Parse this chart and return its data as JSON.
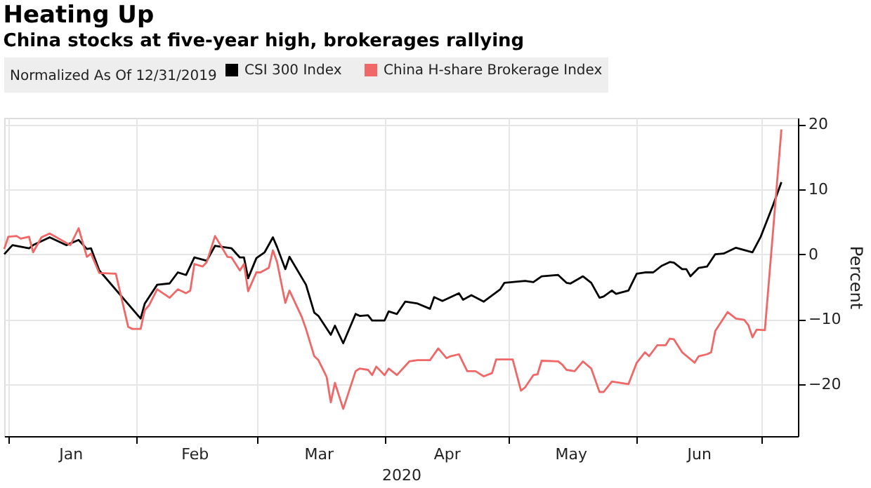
{
  "chart_data": {
    "type": "line",
    "title": "Heating Up",
    "subtitle": "China stocks at five-year high, brokerages rallying",
    "legend_title": "Normalized As Of 12/31/2019",
    "xlabel": "2020",
    "ylabel": "Percent",
    "legend": "top left",
    "grid": true,
    "marker": "none",
    "line_style": "solid",
    "xlim": [
      "2019-12-31",
      "2020-07-10"
    ],
    "xticks": [
      {
        "value": "2020-01-01",
        "label": null
      },
      {
        "value": "2020-01-16",
        "label": "Jan"
      },
      {
        "value": "2020-02-01",
        "label": null
      },
      {
        "value": "2020-02-15",
        "label": "Feb"
      },
      {
        "value": "2020-03-01",
        "label": null
      },
      {
        "value": "2020-03-16",
        "label": "Mar"
      },
      {
        "value": "2020-04-01",
        "label": null
      },
      {
        "value": "2020-04-16",
        "label": "Apr"
      },
      {
        "value": "2020-05-01",
        "label": null
      },
      {
        "value": "2020-05-16",
        "label": "May"
      },
      {
        "value": "2020-06-01",
        "label": null
      },
      {
        "value": "2020-06-16",
        "label": "Jun"
      },
      {
        "value": "2020-07-01",
        "label": null
      }
    ],
    "ylim": [
      -28,
      21
    ],
    "yticks": [
      -20,
      -10,
      0,
      10,
      20
    ],
    "series": [
      {
        "name": "CSI 300 Index",
        "color": "#000000",
        "x": [
          "2019-12-31",
          "2020-01-02",
          "2020-01-06",
          "2020-01-07",
          "2020-01-11",
          "2020-01-15",
          "2020-01-18",
          "2020-01-20",
          "2020-01-21",
          "2020-01-23",
          "2020-02-02",
          "2020-02-03",
          "2020-02-06",
          "2020-02-09",
          "2020-02-11",
          "2020-02-13",
          "2020-02-15",
          "2020-02-18",
          "2020-02-20",
          "2020-02-24",
          "2020-02-26",
          "2020-02-27",
          "2020-02-28",
          "2020-03-01",
          "2020-03-03",
          "2020-03-05",
          "2020-03-06",
          "2020-03-08",
          "2020-03-09",
          "2020-03-13",
          "2020-03-15",
          "2020-03-16",
          "2020-03-19",
          "2020-03-20",
          "2020-03-22",
          "2020-03-25",
          "2020-03-26",
          "2020-03-28",
          "2020-03-29",
          "2020-04-01",
          "2020-04-02",
          "2020-04-04",
          "2020-04-06",
          "2020-04-09",
          "2020-04-12",
          "2020-04-13",
          "2020-04-15",
          "2020-04-19",
          "2020-04-20",
          "2020-04-22",
          "2020-04-25",
          "2020-04-29",
          "2020-04-30",
          "2020-05-05",
          "2020-05-07",
          "2020-05-09",
          "2020-05-13",
          "2020-05-15",
          "2020-05-16",
          "2020-05-19",
          "2020-05-21",
          "2020-05-23",
          "2020-05-24",
          "2020-05-26",
          "2020-05-27",
          "2020-05-30",
          "2020-06-01",
          "2020-06-03",
          "2020-06-05",
          "2020-06-07",
          "2020-06-09",
          "2020-06-10",
          "2020-06-12",
          "2020-06-13",
          "2020-06-14",
          "2020-06-16",
          "2020-06-18",
          "2020-06-20",
          "2020-06-22",
          "2020-06-25",
          "2020-06-29",
          "2020-07-01",
          "2020-07-04",
          "2020-07-06"
        ],
        "values": [
          0,
          1.4,
          0.9,
          1.4,
          2.6,
          1.4,
          2.2,
          0.8,
          0.9,
          -2.5,
          -9.9,
          -7.6,
          -4.7,
          -4.5,
          -2.8,
          -3.2,
          -0.5,
          -1.0,
          1.3,
          0.9,
          -0.5,
          -0.5,
          -3.7,
          -0.6,
          0.3,
          2.6,
          1.1,
          -2.3,
          -0.4,
          -4.7,
          -9.0,
          -9.5,
          -12.4,
          -11.0,
          -13.7,
          -9.2,
          -9.5,
          -9.4,
          -10.2,
          -10.2,
          -8.8,
          -9.2,
          -7.3,
          -7.6,
          -8.4,
          -6.6,
          -7.2,
          -6.0,
          -7.0,
          -6.3,
          -7.3,
          -5.4,
          -4.4,
          -4.1,
          -4.3,
          -3.4,
          -3.2,
          -4.4,
          -4.5,
          -3.4,
          -4.4,
          -6.7,
          -6.5,
          -5.6,
          -6.1,
          -5.6,
          -3.0,
          -2.8,
          -2.8,
          -1.8,
          -1.2,
          -1.3,
          -2.3,
          -2.3,
          -3.4,
          -2.1,
          -1.9,
          0,
          0.1,
          1.0,
          0.3,
          2.7,
          7.6,
          11.1
        ]
      },
      {
        "name": "China H-share Brokerage Index",
        "color": "#f06767",
        "x": [
          "2019-12-31",
          "2020-01-01",
          "2020-01-03",
          "2020-01-04",
          "2020-01-06",
          "2020-01-07",
          "2020-01-09",
          "2020-01-11",
          "2020-01-16",
          "2020-01-18",
          "2020-01-20",
          "2020-01-21",
          "2020-01-23",
          "2020-01-27",
          "2020-01-30",
          "2020-01-31",
          "2020-02-02",
          "2020-02-03",
          "2020-02-04",
          "2020-02-06",
          "2020-02-09",
          "2020-02-11",
          "2020-02-13",
          "2020-02-14",
          "2020-02-15",
          "2020-02-17",
          "2020-02-18",
          "2020-02-20",
          "2020-02-23",
          "2020-02-24",
          "2020-02-26",
          "2020-02-27",
          "2020-02-28",
          "2020-03-01",
          "2020-03-02",
          "2020-03-04",
          "2020-03-05",
          "2020-03-06",
          "2020-03-08",
          "2020-03-09",
          "2020-03-12",
          "2020-03-13",
          "2020-03-15",
          "2020-03-16",
          "2020-03-18",
          "2020-03-19",
          "2020-03-20",
          "2020-03-22",
          "2020-03-25",
          "2020-03-26",
          "2020-03-28",
          "2020-03-29",
          "2020-03-30",
          "2020-04-01",
          "2020-04-02",
          "2020-04-04",
          "2020-04-07",
          "2020-04-09",
          "2020-04-12",
          "2020-04-14",
          "2020-04-16",
          "2020-04-17",
          "2020-04-19",
          "2020-04-21",
          "2020-04-23",
          "2020-04-25",
          "2020-04-27",
          "2020-04-28",
          "2020-05-02",
          "2020-05-04",
          "2020-05-05",
          "2020-05-07",
          "2020-05-08",
          "2020-05-09",
          "2020-05-13",
          "2020-05-14",
          "2020-05-15",
          "2020-05-17",
          "2020-05-19",
          "2020-05-21",
          "2020-05-23",
          "2020-05-24",
          "2020-05-26",
          "2020-05-30",
          "2020-06-01",
          "2020-06-03",
          "2020-06-04",
          "2020-06-06",
          "2020-06-08",
          "2020-06-09",
          "2020-06-10",
          "2020-06-12",
          "2020-06-15",
          "2020-06-16",
          "2020-06-18",
          "2020-06-19",
          "2020-06-20",
          "2020-06-23",
          "2020-06-25",
          "2020-06-27",
          "2020-06-28",
          "2020-06-29",
          "2020-06-30",
          "2020-07-02",
          "2020-07-06"
        ],
        "values": [
          0.8,
          2.7,
          2.8,
          2.4,
          2.7,
          0.3,
          2.6,
          3.2,
          1.4,
          4.0,
          -0.4,
          0.1,
          -2.9,
          -3.0,
          -11.2,
          -11.5,
          -11.5,
          -8.6,
          -7.9,
          -5.4,
          -6.7,
          -5.4,
          -6.0,
          -5.6,
          -1.5,
          -1.9,
          -1.2,
          2.8,
          -0.4,
          -0.5,
          -2.5,
          -1.5,
          -5.7,
          -2.8,
          -2.8,
          -2.1,
          0.6,
          -1.2,
          -7.5,
          -5.6,
          -9.7,
          -11.5,
          -15.7,
          -16.3,
          -18.9,
          -22.8,
          -19.8,
          -23.8,
          -18.0,
          -17.6,
          -17.8,
          -18.6,
          -17.3,
          -18.6,
          -17.6,
          -18.6,
          -16.5,
          -16.3,
          -16.3,
          -14.5,
          -16.0,
          -15.7,
          -15.4,
          -18.0,
          -18.0,
          -18.8,
          -18.3,
          -16.2,
          -16.2,
          -21.0,
          -20.5,
          -18.6,
          -18.5,
          -16.4,
          -16.5,
          -17.0,
          -17.8,
          -18.0,
          -16.5,
          -17.6,
          -21.2,
          -21.2,
          -19.6,
          -20.0,
          -16.7,
          -15.1,
          -15.7,
          -14.0,
          -14.0,
          -13.0,
          -13.1,
          -15.1,
          -16.7,
          -15.7,
          -15.4,
          -15.1,
          -11.8,
          -8.9,
          -9.9,
          -10.1,
          -10.9,
          -12.8,
          -11.6,
          -11.7,
          19.2
        ]
      }
    ]
  }
}
